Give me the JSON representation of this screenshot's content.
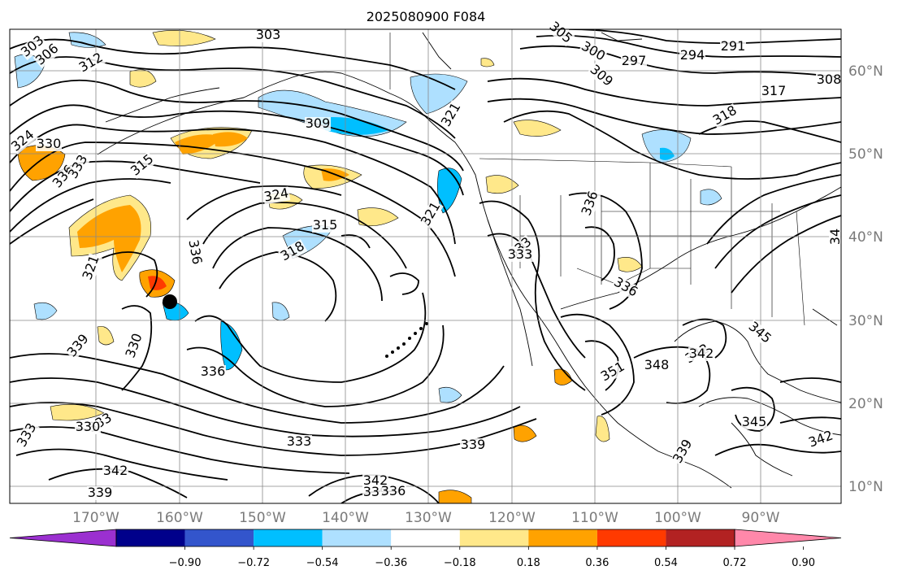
{
  "title": "2025080900 F084",
  "map": {
    "lat_labels": [
      "60°N",
      "50°N",
      "40°N",
      "30°N",
      "20°N",
      "10°N"
    ],
    "lon_labels": [
      "170°W",
      "160°W",
      "150°W",
      "140°W",
      "130°W",
      "120°W",
      "110°W",
      "100°W",
      "90°W"
    ],
    "grid": true
  },
  "contour_labels": [
    "303",
    "306",
    "312",
    "303",
    "305",
    "300",
    "297",
    "294",
    "291",
    "308",
    "309",
    "317",
    "318",
    "324",
    "330",
    "336",
    "333",
    "315",
    "309",
    "321",
    "324",
    "315",
    "318",
    "336",
    "321",
    "321",
    "333",
    "330",
    "333",
    "339",
    "336",
    "333",
    "333",
    "330",
    "342",
    "339",
    "342",
    "339",
    "336",
    "339",
    "336",
    "351",
    "345",
    "348",
    "342",
    "345",
    "339",
    "342",
    "342",
    "336",
    "333",
    "34"
  ],
  "colorbar": {
    "ticks": [
      "−0.90",
      "−0.72",
      "−0.54",
      "−0.36",
      "−0.18",
      "0.18",
      "0.36",
      "0.54",
      "0.72",
      "0.90"
    ],
    "colors": [
      "#9b30d0",
      "#00008b",
      "#3355cc",
      "#00bfff",
      "#aee0ff",
      "#ffffff",
      "#ffe88a",
      "#ffa200",
      "#ff3a00",
      "#b22222",
      "#ff88aa"
    ]
  },
  "colors": {
    "neg_light": "#aee0ff",
    "neg_mid": "#00bfff",
    "pos_light": "#ffe88a",
    "pos_mid": "#ffa200",
    "pos_strong": "#ff3a00"
  }
}
